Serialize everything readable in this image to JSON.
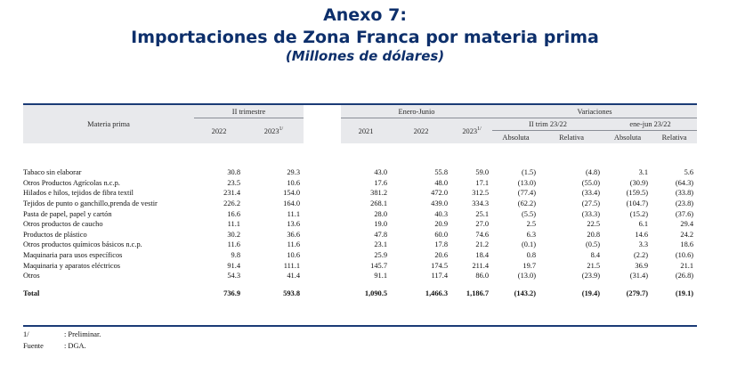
{
  "title": {
    "line1": "Anexo 7:",
    "line2": "Importaciones de Zona Franca por materia prima",
    "line3": "(Millones de dólares)"
  },
  "table": {
    "col_label": "Materia prima",
    "groups": {
      "q2": "II trimestre",
      "ytd": "Enero-Junio",
      "var": "Variaciones"
    },
    "subgroups": {
      "q2": "II trim 23/22",
      "ytd": "ene-jun 23/22"
    },
    "years": {
      "q2_2022": "2022",
      "q2_2023": "2023",
      "ytd_2021": "2021",
      "ytd_2022": "2022",
      "ytd_2023": "2023"
    },
    "sup": "1/",
    "var_cols": {
      "abs": "Absoluta",
      "rel": "Relativa"
    },
    "rows": [
      {
        "name": "Tabaco sin elaborar",
        "v": [
          "30.8",
          "29.3",
          "43.0",
          "55.8",
          "59.0",
          "(1.5)",
          "(4.8)",
          "3.1",
          "5.6"
        ]
      },
      {
        "name": "Otros Productos Agrícolas n.c.p.",
        "v": [
          "23.5",
          "10.6",
          "17.6",
          "48.0",
          "17.1",
          "(13.0)",
          "(55.0)",
          "(30.9)",
          "(64.3)"
        ]
      },
      {
        "name": "Hilados e hilos, tejidos de fibra textil",
        "v": [
          "231.4",
          "154.0",
          "381.2",
          "472.0",
          "312.5",
          "(77.4)",
          "(33.4)",
          "(159.5)",
          "(33.8)"
        ]
      },
      {
        "name": "Tejidos de punto o ganchillo,prenda de vestir",
        "v": [
          "226.2",
          "164.0",
          "268.1",
          "439.0",
          "334.3",
          "(62.2)",
          "(27.5)",
          "(104.7)",
          "(23.8)"
        ]
      },
      {
        "name": "Pasta de papel, papel y cartón",
        "v": [
          "16.6",
          "11.1",
          "28.0",
          "40.3",
          "25.1",
          "(5.5)",
          "(33.3)",
          "(15.2)",
          "(37.6)"
        ]
      },
      {
        "name": "Otros productos de caucho",
        "v": [
          "11.1",
          "13.6",
          "19.0",
          "20.9",
          "27.0",
          "2.5",
          "22.5",
          "6.1",
          "29.4"
        ]
      },
      {
        "name": "Productos de plástico",
        "v": [
          "30.2",
          "36.6",
          "47.8",
          "60.0",
          "74.6",
          "6.3",
          "20.8",
          "14.6",
          "24.2"
        ]
      },
      {
        "name": "Otros productos químicos básicos n.c.p.",
        "v": [
          "11.6",
          "11.6",
          "23.1",
          "17.8",
          "21.2",
          "(0.1)",
          "(0.5)",
          "3.3",
          "18.6"
        ]
      },
      {
        "name": "Maquinaria para usos específicos",
        "v": [
          "9.8",
          "10.6",
          "25.9",
          "20.6",
          "18.4",
          "0.8",
          "8.4",
          "(2.2)",
          "(10.6)"
        ]
      },
      {
        "name": "Maquinaria y aparatos eléctricos",
        "v": [
          "91.4",
          "111.1",
          "145.7",
          "174.5",
          "211.4",
          "19.7",
          "21.5",
          "36.9",
          "21.1"
        ]
      },
      {
        "name": "Otros",
        "v": [
          "54.3",
          "41.4",
          "91.1",
          "117.4",
          "86.0",
          "(13.0)",
          "(23.9)",
          "(31.4)",
          "(26.8)"
        ]
      }
    ],
    "total": {
      "name": "Total",
      "v": [
        "736.9",
        "593.8",
        "1,090.5",
        "1,466.3",
        "1,186.7",
        "(143.2)",
        "(19.4)",
        "(279.7)",
        "(19.1)"
      ]
    }
  },
  "footnotes": [
    {
      "key": "1/",
      "text": ": Preliminar."
    },
    {
      "key": "Fuente",
      "text": ": DGA."
    }
  ]
}
